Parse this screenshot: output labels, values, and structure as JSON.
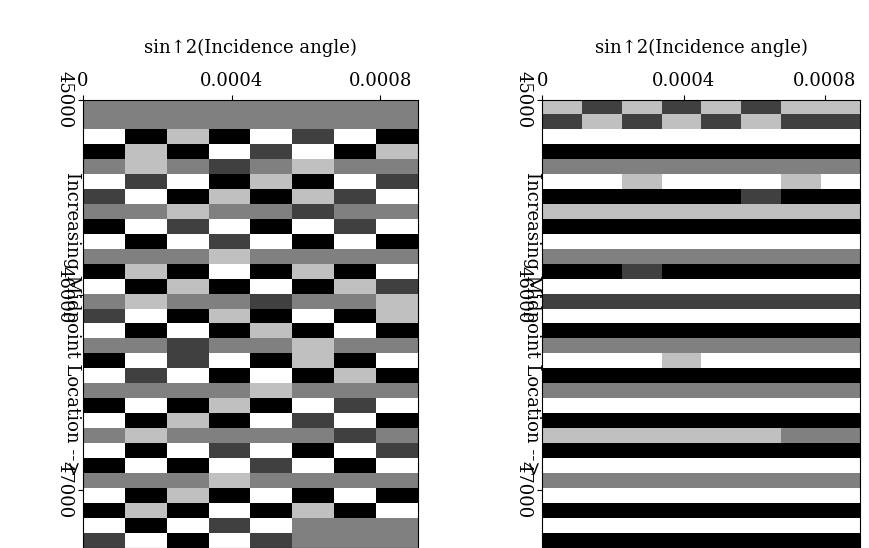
{
  "chart_data": [
    {
      "type": "heatmap",
      "xlabel": "sin↑2(Incidence angle)",
      "ylabel": "Increasing Midpoint Location -->",
      "xlim": [
        0,
        0.0009
      ],
      "xticks": [
        0,
        0.0004,
        0.0008
      ],
      "ylim": [
        47300,
        45000
      ],
      "yticks": [
        45000,
        46000,
        47000
      ],
      "clim": [
        -1,
        1
      ],
      "cells": [
        [
          0,
          0,
          0,
          0,
          0,
          0,
          0,
          0
        ],
        [
          0,
          0,
          0,
          0,
          0,
          0,
          0,
          0
        ],
        [
          1,
          -1,
          0.5,
          -1,
          1,
          -0.5,
          1,
          -1
        ],
        [
          -1,
          0.5,
          -1,
          1,
          -0.5,
          1,
          -1,
          0.5
        ],
        [
          0,
          0.5,
          0,
          -0.5,
          0,
          0.5,
          0,
          0
        ],
        [
          1,
          -0.5,
          1,
          -1,
          0.5,
          -1,
          1,
          -0.5
        ],
        [
          -0.5,
          1,
          -1,
          0.5,
          -1,
          0.5,
          -0.5,
          1
        ],
        [
          0,
          0,
          0.5,
          0,
          0,
          -0.5,
          0,
          0
        ],
        [
          -1,
          1,
          -0.5,
          1,
          -1,
          1,
          -0.5,
          1
        ],
        [
          1,
          -1,
          1,
          -0.5,
          1,
          -1,
          1,
          -1
        ],
        [
          0,
          0,
          0,
          0.5,
          0,
          0,
          0,
          0
        ],
        [
          -1,
          0.5,
          -1,
          1,
          -1,
          0.5,
          -1,
          1
        ],
        [
          1,
          -1,
          0.5,
          -1,
          1,
          -1,
          0.5,
          -0.5
        ],
        [
          0,
          0.5,
          0,
          0,
          -0.5,
          0,
          0,
          0.5
        ],
        [
          -0.5,
          1,
          -1,
          0.5,
          -1,
          1,
          -1,
          0.5
        ],
        [
          1,
          -1,
          1,
          -1,
          0.5,
          -1,
          1,
          -1
        ],
        [
          0,
          0,
          -0.5,
          0,
          0,
          0.5,
          0,
          0
        ],
        [
          -1,
          1,
          -0.5,
          1,
          -1,
          0.5,
          -1,
          1
        ],
        [
          1,
          -0.5,
          1,
          -1,
          1,
          -1,
          0.5,
          -1
        ],
        [
          0,
          0,
          0,
          0,
          0.5,
          0,
          0,
          0
        ],
        [
          -1,
          1,
          -1,
          0.5,
          -1,
          1,
          -0.5,
          1
        ],
        [
          1,
          -1,
          0.5,
          -1,
          1,
          -0.5,
          1,
          -1
        ],
        [
          0,
          0.5,
          0,
          0,
          0,
          0,
          -0.5,
          0
        ],
        [
          1,
          -1,
          1,
          -0.5,
          1,
          -1,
          1,
          -0.5
        ],
        [
          -1,
          1,
          -1,
          1,
          -0.5,
          1,
          -1,
          1
        ],
        [
          0,
          0,
          0,
          0.5,
          0,
          0,
          0,
          0
        ],
        [
          1,
          -1,
          0.5,
          -1,
          1,
          -1,
          1,
          -1
        ],
        [
          -1,
          0.5,
          -1,
          1,
          -1,
          0.5,
          -1,
          1
        ],
        [
          1,
          -1,
          1,
          -0.5,
          1,
          0,
          0,
          0
        ],
        [
          -0.5,
          1,
          -1,
          1,
          -0.5,
          0,
          0,
          0
        ]
      ]
    },
    {
      "type": "heatmap",
      "xlabel": "sin↑2(Incidence angle)",
      "ylabel": "Increasing Midpoint Location -->",
      "xlim": [
        0,
        0.0009
      ],
      "xticks": [
        0,
        0.0004,
        0.0008
      ],
      "ylim": [
        47300,
        45000
      ],
      "yticks": [
        45000,
        46000,
        47000
      ],
      "clim": [
        -1,
        1
      ],
      "cells": [
        [
          0.5,
          -0.5,
          0.5,
          -0.5,
          0.5,
          -0.5,
          0.5,
          0.5
        ],
        [
          -0.5,
          0.5,
          -0.5,
          0.5,
          -0.5,
          0.5,
          -0.5,
          -0.5
        ],
        [
          1,
          1,
          1,
          1,
          1,
          1,
          1,
          1
        ],
        [
          -1,
          -1,
          -1,
          -1,
          -1,
          -1,
          -1,
          -1
        ],
        [
          0,
          0,
          0,
          0,
          0,
          0,
          0,
          0
        ],
        [
          1,
          1,
          0.5,
          1,
          1,
          1,
          0.5,
          1
        ],
        [
          -1,
          -1,
          -1,
          -1,
          -1,
          -0.5,
          -1,
          -1
        ],
        [
          0.5,
          0.5,
          0.5,
          0.5,
          0.5,
          0.5,
          0.5,
          0.5
        ],
        [
          -1,
          -1,
          -1,
          -1,
          -1,
          -1,
          -1,
          -1
        ],
        [
          1,
          1,
          1,
          1,
          1,
          1,
          1,
          1
        ],
        [
          0,
          0,
          0,
          0,
          0,
          0,
          0,
          0
        ],
        [
          -1,
          -1,
          -0.5,
          -1,
          -1,
          -1,
          -1,
          -1
        ],
        [
          1,
          1,
          1,
          1,
          1,
          1,
          1,
          1
        ],
        [
          -0.5,
          -0.5,
          -0.5,
          -0.5,
          -0.5,
          -0.5,
          -0.5,
          -0.5
        ],
        [
          1,
          1,
          1,
          1,
          1,
          1,
          1,
          1
        ],
        [
          -1,
          -1,
          -1,
          -1,
          -1,
          -1,
          -1,
          -1
        ],
        [
          0,
          0,
          0,
          0,
          0,
          0,
          0,
          0
        ],
        [
          1,
          1,
          1,
          0.5,
          1,
          1,
          1,
          1
        ],
        [
          -1,
          -1,
          -1,
          -1,
          -1,
          -1,
          -1,
          -1
        ],
        [
          0,
          0,
          0,
          0,
          0,
          0,
          0,
          0
        ],
        [
          1,
          1,
          1,
          1,
          1,
          1,
          1,
          1
        ],
        [
          -1,
          -1,
          -1,
          -1,
          -1,
          -1,
          -1,
          -1
        ],
        [
          0.5,
          0.5,
          0.5,
          0.5,
          0.5,
          0.5,
          0,
          0
        ],
        [
          -1,
          -1,
          -1,
          -1,
          -1,
          -1,
          -1,
          -1
        ],
        [
          1,
          1,
          1,
          1,
          1,
          1,
          1,
          1
        ],
        [
          0,
          0,
          0,
          0,
          0,
          0,
          0,
          0
        ],
        [
          1,
          1,
          1,
          1,
          1,
          1,
          1,
          1
        ],
        [
          -1,
          -1,
          -1,
          -1,
          -1,
          -1,
          -1,
          -1
        ],
        [
          1,
          1,
          1,
          1,
          1,
          1,
          1,
          1
        ],
        [
          -1,
          -1,
          -1,
          -1,
          -1,
          -1,
          -1,
          -1
        ]
      ]
    }
  ]
}
